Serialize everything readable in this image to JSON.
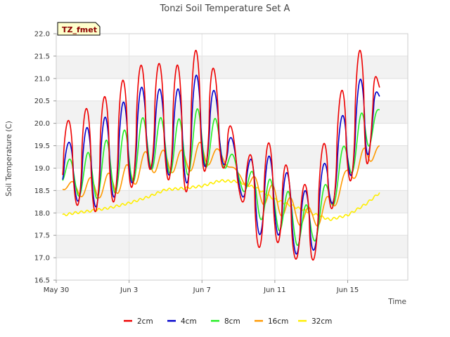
{
  "chart_data": {
    "type": "line",
    "title": "Tonzi Soil Temperature Set A",
    "xlabel": "Time",
    "ylabel": "Soil Temperature (C)",
    "badge": "TZ_fmet",
    "xlim": [
      0,
      19.3
    ],
    "ylim": [
      16.5,
      22.0
    ],
    "yticks": [
      16.5,
      17.0,
      17.5,
      18.0,
      18.5,
      19.0,
      19.5,
      20.0,
      20.5,
      21.0,
      21.5,
      22.0
    ],
    "ytick_labels": [
      "16.5",
      "17.0",
      "17.5",
      "18.0",
      "18.5",
      "19.0",
      "19.5",
      "20.0",
      "20.5",
      "21.0",
      "21.5",
      "22.0"
    ],
    "xticks": [
      0,
      4,
      8,
      12,
      16
    ],
    "xtick_labels": [
      "May 30",
      "Jun 3",
      "Jun 7",
      "Jun 11",
      "Jun 15"
    ],
    "start_day": 0.35,
    "end_day": 17.75,
    "daily_extrema": {
      "days": [
        0,
        1,
        2,
        3,
        4,
        5,
        6,
        7,
        8,
        9,
        10,
        11,
        12,
        13,
        14,
        15,
        16,
        17,
        17.75
      ],
      "2cm": {
        "max": [
          19.8,
          20.2,
          20.4,
          20.7,
          21.1,
          21.4,
          21.3,
          21.3,
          21.8,
          20.9,
          19.3,
          19.3,
          19.7,
          18.7,
          18.6,
          20.0,
          21.1,
          21.9,
          20.8
        ],
        "min": [
          18.6,
          18.2,
          18.0,
          18.2,
          18.5,
          19.0,
          18.8,
          18.4,
          18.9,
          19.1,
          18.5,
          17.2,
          17.4,
          17.0,
          16.8,
          18.0,
          18.7,
          18.8,
          20.8
        ]
      },
      "4cm": {
        "max": [
          19.3,
          19.7,
          20.0,
          20.2,
          20.6,
          20.9,
          20.7,
          20.8,
          21.2,
          20.5,
          19.2,
          19.2,
          19.3,
          18.7,
          18.4,
          19.4,
          20.5,
          21.2,
          20.6
        ],
        "min": [
          18.7,
          18.3,
          18.1,
          18.3,
          18.6,
          19.0,
          18.9,
          18.6,
          19.0,
          19.2,
          18.6,
          17.5,
          17.6,
          17.1,
          17.0,
          18.1,
          18.8,
          19.0,
          20.6
        ]
      },
      "8cm": {
        "max": [
          19.2,
          19.2,
          19.4,
          19.7,
          19.9,
          20.2,
          20.1,
          20.1,
          20.4,
          20.0,
          19.0,
          18.9,
          18.7,
          18.4,
          18.1,
          18.8,
          19.7,
          20.4,
          20.3
        ],
        "min": [
          18.8,
          18.4,
          18.3,
          18.4,
          18.6,
          19.0,
          18.9,
          18.8,
          19.0,
          19.1,
          18.7,
          17.9,
          17.7,
          17.3,
          17.2,
          18.0,
          18.8,
          19.2,
          20.3
        ]
      },
      "16cm": {
        "max": [
          18.7,
          18.7,
          18.8,
          18.9,
          19.1,
          19.4,
          19.4,
          19.4,
          19.6,
          19.4,
          18.9,
          18.8,
          18.6,
          18.3,
          18.1,
          18.4,
          19.0,
          19.5,
          19.5
        ],
        "min": [
          18.6,
          18.4,
          18.3,
          18.4,
          18.5,
          18.9,
          18.9,
          18.9,
          19.0,
          19.2,
          18.8,
          18.3,
          18.0,
          17.8,
          17.6,
          17.9,
          18.7,
          18.9,
          19.5
        ]
      },
      "32cm": {
        "level": [
          17.92,
          18.0,
          18.05,
          18.12,
          18.22,
          18.35,
          18.52,
          18.55,
          18.6,
          18.72,
          18.7,
          18.55,
          18.3,
          18.15,
          18.0,
          17.85,
          17.95,
          18.2,
          18.45
        ]
      }
    },
    "series": [
      {
        "name": "2cm",
        "color": "#ee0000"
      },
      {
        "name": "4cm",
        "color": "#0000cc"
      },
      {
        "name": "8cm",
        "color": "#22ee22"
      },
      {
        "name": "16cm",
        "color": "#ff9900"
      },
      {
        "name": "32cm",
        "color": "#ffee00"
      }
    ],
    "legend_position": "bottom-center",
    "grid": true
  }
}
